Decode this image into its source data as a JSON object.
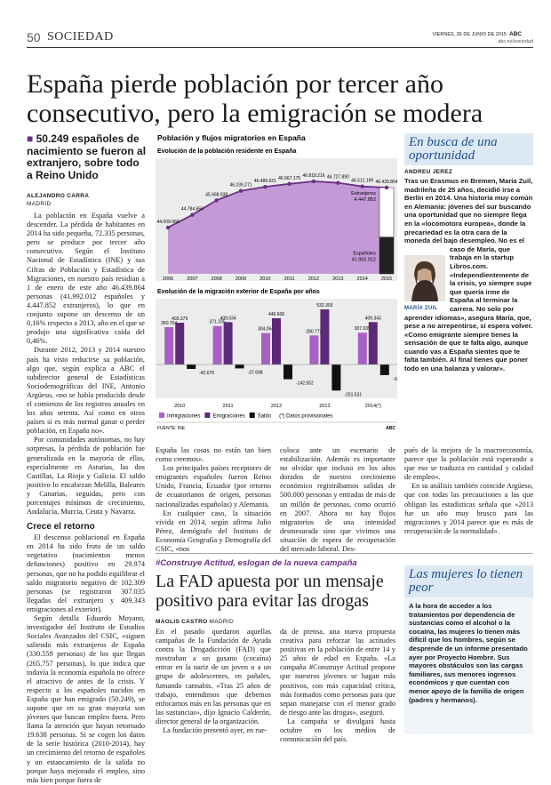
{
  "header": {
    "page": "50",
    "section": "SOCIEDAD",
    "date": "VIERNES, 26 DE JUNIO DE 2015",
    "brand": "ABC",
    "url": "abc.es/sociedad"
  },
  "main": {
    "headline": "España pierde población por tercer año consecutivo, pero la emigración se modera",
    "deck": "50.249 españoles de nacimiento se fueron al extranjero, sobre todo a Reino Unido",
    "author": "ALEJANDRO CARRA",
    "place": "MADRID",
    "col1": [
      "La población en España vuelve a descender. La pérdida de habitantes en 2014 ha sido pequeña, 72.335 personas, pero se produce por tercer año consecutivo. Según el Instituto Nacional de Estadística (INE) y sus Cifras de Población y Estadística de Migraciones, en nuestro país residían a 1 de enero de este año 46.439.864 personas (41.992.012 españoles y 4.447.852 extranjeros), lo que en conjunto supone un descenso de un 0,16% respecto a 2013, año en el que se produjo una significativa caída del 0,46%.",
      "Durante 2012, 2013 y 2014 nuestro país ha visto reducirse su población, algo que, según explica a ABC el subdirector general de Estadísticas Sociodemográficas del INE, Antonio Argüeso, «no se había producido desde el comienzo de los registros anuales en los años setenta. Así como en otros países sí es más normal ganar o perder población, en España no».",
      "Por comunidades autónomas, no hay sorpresas, la pérdida de población fue generalizada en la mayoría de ellas, especialmente en Asturias, las dos Castillas, La Rioja y Galicia. El saldo positivo lo encabezan Melilla, Baleares y Canarias, seguidas, pero con porcentajes mínimos de crecimiento, Andalucía, Murcia, Ceuta y Navarra."
    ],
    "subhead": "Crece el retorno",
    "col1b": [
      "El descenso poblacional en España en 2014 ha sido fruto de un saldo vegetativo (nacimientos menos defunciones) positivo en 29.974 personas, que no ha podido equilibrar el saldo migratorio negativo de 102.309 personas (se registraron 307.035 llegadas del extranjero y 409.343 emigraciones al exterior).",
      "Según detalla Eduardo Moyano, investigador del Instituto de Estudios Sociales Avanzados del CSIC, «siguen saliendo más extranjeros de España (330.559 personas) de los que llegan (265.757 personas), lo que indica que todavía la economía española no ofrece el atractivo de antes de la crisis. Y respecto a los españoles nacidos en España que han emigrado (50.249), se supone que en su gran mayoría son jóvenes que buscan empleo fuera. Pero llama la atención que hayan retornado 19.638 personas. Si se cogen los datos de la serie histórica (2010-2014), hay un crecimiento del retorno de españoles y un estancamiento de la salida no porque haya mejorado el empleo, sino más bien porque fuera de"
    ],
    "col2": [
      "España las cosas no están tan bien como creemos».",
      "Los principales países receptores de emigrantes españoles fueron Reino Unido, Francia, Ecuador (por retorno de ecuatorianos de origen, personas nacionalizadas españolas) y Alemania.",
      "En cualquier caso, la situación vivida en 2014, según afirma Julio Pérez, demógrafo del Instituto de Economía Geografía y Demografía del CSIC, «nos"
    ],
    "col3": [
      "coloca ante un escenario de estabilización. Además es importante no olvidar que incluso en los años dorados de nuestro crecimiento económico registrábamos salidas de 500.000 personas y entradas de más de un millón de personas, como ocurrió en 2007. Ahora no hay flujos migratorios de una intensidad desmesurada sino que vivimos una situación de espera de recuperación del mercado laboral. Des-"
    ],
    "col4": [
      "pués de la mejora de la macroeconomía, parece que la población está esperando a que eso se traduzca en cantidad y calidad de empleo».",
      "En su análisis también coincide Argüeso, que con todas las precauciones a las que obligan las estadísticas señala que «2013 fue un año muy brusco para las migraciones y 2014 parece que es más de recuperación de la normalidad»."
    ]
  },
  "chart": {
    "title": "Población y flujos migratorios en España",
    "area": {
      "title": "Evolución de la población residente en España",
      "categories": [
        "2006",
        "2007",
        "2008",
        "2009",
        "2010",
        "2011",
        "2012",
        "2013",
        "2014",
        "2015"
      ],
      "values": [
        44009969,
        44784659,
        45668938,
        46239271,
        46486621,
        46667175,
        46818216,
        46727890,
        46512199,
        46439864
      ],
      "value_labels": [
        "44.009.969",
        "44.784.659",
        "45.668.938",
        "46.239.271",
        "46.486.621",
        "46.667.175",
        "46.818.216",
        "46.727.890",
        "46.512.199",
        "46.439.864"
      ],
      "color": "#c49ad6",
      "line_color": "#6b2f86",
      "breakdown": [
        {
          "name": "Extranjeros",
          "value": 4447852,
          "label": "4.447.852",
          "color": "#ffffff"
        },
        {
          "name": "Españoles",
          "value": 41992012,
          "label": "41.992.012",
          "color": "#222222"
        }
      ]
    },
    "bars": {
      "title": "Evolución de la migración exterior de España por años",
      "categories": [
        "2010",
        "2011",
        "2012",
        "2013",
        "2014(*)"
      ],
      "series": [
        {
          "name": "Inmigraciones",
          "color": "#a960c4",
          "values": [
            360704,
            371335,
            304054,
            280772,
            307035
          ],
          "value_labels": [
            "360.704",
            "371.335",
            "304.054",
            "280.772",
            "307.035"
          ]
        },
        {
          "name": "Emigraciones",
          "color": "#5e2a78",
          "values": [
            403379,
            409034,
            446606,
            532303,
            409343
          ],
          "value_labels": [
            "403.379",
            "409.034",
            "446.606",
            "532.303",
            "409.343"
          ]
        },
        {
          "name": "Saldo",
          "color": "#111111",
          "values": [
            -42675,
            -37698,
            -142552,
            -251531,
            -102309
          ],
          "value_labels": [
            "-42.675",
            "-37.698",
            "-142.552",
            "-251.531",
            "-102.309"
          ]
        }
      ],
      "note": "(*) Datos provisionales"
    },
    "source": "FUENTE: INE",
    "brand": "ABC"
  },
  "sidebar": {
    "title": "En busca de una oportunidad",
    "author": "ANDREU JEREZ",
    "paragraphs": [
      "Tras un Erasmus en Bremen, María Zuil, madrileña de 25 años, decidió irse a Berlín en 2014. Una historia muy común en Alemania: jóvenes del sur buscando una oportunidad que no siempre llega en la «locomotora europea», donde la precariedad es la otra cara de la moneda del bajo desempleo. No es el caso de María, que trabaja en la startup Libros.com.",
      "«Independientemente de la crisis, yo siempre supe que quería irme de España al terminar la carrera. No solo por aprender idiomas», asegura María, que, pese a no arrepentirse, sí espera volver. «Como emigrante siempre tienes la sensación de que te falta algo, aunque cuando vas a España sientes que te falta también. Al final tienes que poner todo en una balanza y valorar»."
    ],
    "caption": "MARÍA ZUIL"
  },
  "second": {
    "kicker": "#Construye Actitud, eslogan de la nueva campaña",
    "headline": "La FAD apuesta por un mensaje positivo para evitar las drogas",
    "author": "MAOLIS CASTRO",
    "place": "MADRID",
    "col1": [
      "En el pasado quedaron aquellas campañas de la Fundación de Ayuda contra la Drogadicción (FAD) que mostraban a un gusano (cocaína) entrar en la nariz de un joven o a un grupo de adolescentes, en pañales, fumando cannabis. «Tras 25 años de trabajo, entendimos que debemos enfocarnos más en las personas que en las sustancias», dijo Ignacio Calderón, director general de la organización.",
      "La fundación presentó ayer, en rue-"
    ],
    "col2": [
      "da de prensa, una nueva propuesta creativa para reforzar las actitudes positivas en la población de entre 14 y 25 años de edad en España. «La campaña #Construye Actitud propone que nuestros jóvenes se hagan más positivos, con más capacidad crítica, más formados como personas para que sepan manejarse con el menor grado de riesgo ante las drogas», aseguró.",
      "La campaña se divulgará hasta octubre en los medios de comunicación del país."
    ]
  },
  "sidebar2": {
    "title": "Las mujeres lo tienen peor",
    "text": "A la hora de acceder a los tratamientos por dependencia de sustancias como el alcohol o la cocaína, las mujeres lo tienen más difícil que los hombres, según se desprende de un informe presentado ayer por Proyecto Hombre. Sus mayores obstáculos son las cargas familiares, sus menores ingresos económicos y que cuentan con menor apoyo de la familia de origen (padres y hermanos)."
  }
}
